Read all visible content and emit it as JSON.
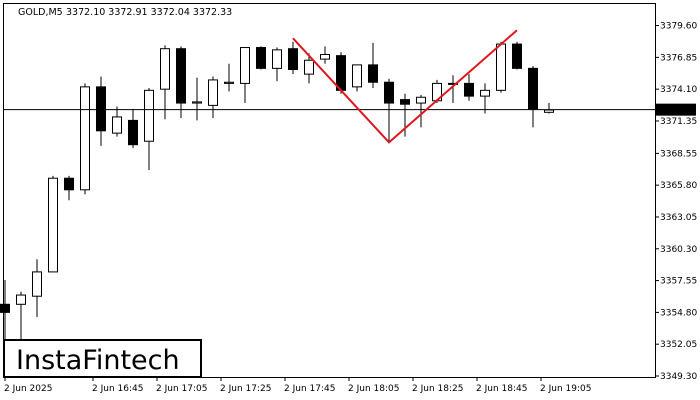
{
  "header": {
    "symbol": "GOLD,M5",
    "ohlc": "3372.10 3372.91 3372.04 3372.33"
  },
  "logo": {
    "text": "InstaFintech"
  },
  "colors": {
    "pattern_line": "#e0161e",
    "price_line": "#000000",
    "grid": "#000000",
    "price_label_bg": "#000000",
    "price_label_text": "#ffffff",
    "bull_fill": "#ffffff",
    "bear_fill": "#000000"
  },
  "chart_data": {
    "type": "candlestick",
    "title": "",
    "xlabel": "",
    "ylabel": "",
    "ylim": [
      3349.3,
      3380.6
    ],
    "current_price": 3372.33,
    "current_price_label": "3372.33",
    "y_ticks": [
      "3379.60",
      "3376.85",
      "3374.10",
      "3371.35",
      "3368.55",
      "3365.80",
      "3363.05",
      "3360.30",
      "3357.55",
      "3354.80",
      "3352.05",
      "3349.30"
    ],
    "x_ticks": [
      {
        "label": "2 Jun 2025",
        "index": 0
      },
      {
        "label": "2 Jun 16:45",
        "index": 5.5
      },
      {
        "label": "2 Jun 17:05",
        "index": 9.5
      },
      {
        "label": "2 Jun 17:25",
        "index": 13.5
      },
      {
        "label": "2 Jun 17:45",
        "index": 17.5
      },
      {
        "label": "2 Jun 18:05",
        "index": 21.5
      },
      {
        "label": "2 Jun 18:25",
        "index": 25.5
      },
      {
        "label": "2 Jun 18:45",
        "index": 29.5
      },
      {
        "label": "2 Jun 19:05",
        "index": 33.5
      }
    ],
    "candles": [
      {
        "o": 3355.5,
        "h": 3357.6,
        "l": 3350.2,
        "c": 3354.8
      },
      {
        "o": 3355.5,
        "h": 3356.6,
        "l": 3352.1,
        "c": 3356.3
      },
      {
        "o": 3356.2,
        "h": 3359.4,
        "l": 3354.4,
        "c": 3358.3
      },
      {
        "o": 3358.3,
        "h": 3366.6,
        "l": 3358.3,
        "c": 3366.4
      },
      {
        "o": 3366.4,
        "h": 3366.6,
        "l": 3364.5,
        "c": 3365.4
      },
      {
        "o": 3365.4,
        "h": 3374.6,
        "l": 3365.0,
        "c": 3374.3
      },
      {
        "o": 3374.3,
        "h": 3375.2,
        "l": 3369.2,
        "c": 3370.5
      },
      {
        "o": 3370.3,
        "h": 3372.6,
        "l": 3370.0,
        "c": 3371.7
      },
      {
        "o": 3371.4,
        "h": 3372.4,
        "l": 3369.0,
        "c": 3369.3
      },
      {
        "o": 3369.6,
        "h": 3374.2,
        "l": 3367.1,
        "c": 3374.0
      },
      {
        "o": 3374.1,
        "h": 3377.9,
        "l": 3371.5,
        "c": 3377.6
      },
      {
        "o": 3377.6,
        "h": 3377.8,
        "l": 3371.6,
        "c": 3372.9
      },
      {
        "o": 3372.9,
        "h": 3375.1,
        "l": 3371.4,
        "c": 3373.0
      },
      {
        "o": 3372.7,
        "h": 3375.2,
        "l": 3371.6,
        "c": 3374.9
      },
      {
        "o": 3374.6,
        "h": 3376.3,
        "l": 3373.9,
        "c": 3374.7
      },
      {
        "o": 3374.6,
        "h": 3377.7,
        "l": 3372.9,
        "c": 3377.7
      },
      {
        "o": 3377.7,
        "h": 3377.8,
        "l": 3375.8,
        "c": 3375.9
      },
      {
        "o": 3375.9,
        "h": 3377.7,
        "l": 3374.8,
        "c": 3377.5
      },
      {
        "o": 3377.6,
        "h": 3378.2,
        "l": 3375.4,
        "c": 3375.8
      },
      {
        "o": 3375.4,
        "h": 3377.2,
        "l": 3374.6,
        "c": 3376.6
      },
      {
        "o": 3376.7,
        "h": 3377.8,
        "l": 3376.3,
        "c": 3377.1
      },
      {
        "o": 3377.0,
        "h": 3377.3,
        "l": 3373.7,
        "c": 3374.0
      },
      {
        "o": 3374.3,
        "h": 3376.2,
        "l": 3373.9,
        "c": 3376.2
      },
      {
        "o": 3376.2,
        "h": 3378.1,
        "l": 3374.2,
        "c": 3374.7
      },
      {
        "o": 3374.7,
        "h": 3375.0,
        "l": 3369.5,
        "c": 3372.9
      },
      {
        "o": 3373.2,
        "h": 3373.7,
        "l": 3370.0,
        "c": 3372.8
      },
      {
        "o": 3372.9,
        "h": 3373.6,
        "l": 3370.8,
        "c": 3373.4
      },
      {
        "o": 3373.1,
        "h": 3374.9,
        "l": 3372.9,
        "c": 3374.6
      },
      {
        "o": 3374.6,
        "h": 3375.3,
        "l": 3372.9,
        "c": 3374.6
      },
      {
        "o": 3374.6,
        "h": 3375.4,
        "l": 3373.1,
        "c": 3373.5
      },
      {
        "o": 3373.5,
        "h": 3374.6,
        "l": 3372.0,
        "c": 3374.0
      },
      {
        "o": 3374.0,
        "h": 3378.2,
        "l": 3373.8,
        "c": 3378.0
      },
      {
        "o": 3378.0,
        "h": 3378.2,
        "l": 3375.8,
        "c": 3375.9
      },
      {
        "o": 3375.9,
        "h": 3376.1,
        "l": 3370.8,
        "c": 3372.4
      },
      {
        "o": 3372.1,
        "h": 3372.9,
        "l": 3372.0,
        "c": 3372.3
      }
    ],
    "pattern": {
      "name": "Double Top",
      "points": [
        {
          "index": 18,
          "price": 3378.5
        },
        {
          "index": 24,
          "price": 3369.5
        },
        {
          "index": 32,
          "price": 3379.2
        }
      ]
    }
  }
}
